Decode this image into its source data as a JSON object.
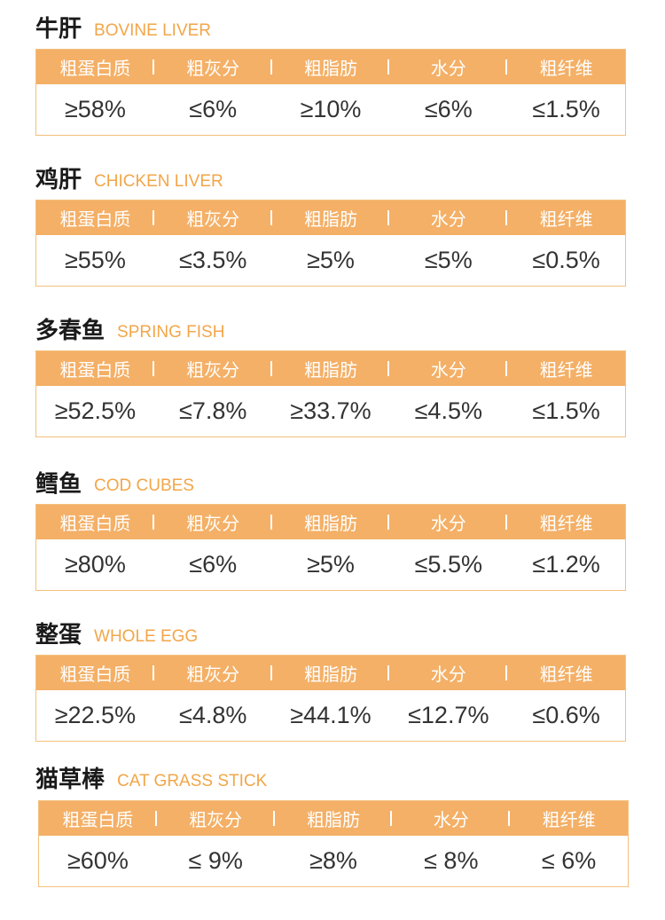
{
  "headers": [
    "粗蛋白质",
    "粗灰分",
    "粗脂肪",
    "水分",
    "粗纤维"
  ],
  "sections": [
    {
      "name_cn": "牛肝",
      "name_en": "BOVINE LIVER",
      "values": [
        "≥58%",
        "≤6%",
        "≥10%",
        "≤6%",
        "≤1.5%"
      ]
    },
    {
      "name_cn": "鸡肝",
      "name_en": "CHICKEN LIVER",
      "values": [
        "≥55%",
        "≤3.5%",
        "≥5%",
        "≤5%",
        "≤0.5%"
      ]
    },
    {
      "name_cn": "多春鱼",
      "name_en": "SPRING FISH",
      "values": [
        "≥52.5%",
        "≤7.8%",
        "≥33.7%",
        "≤4.5%",
        "≤1.5%"
      ]
    },
    {
      "name_cn": "鳕鱼",
      "name_en": "COD CUBES",
      "values": [
        "≥80%",
        "≤6%",
        "≥5%",
        "≤5.5%",
        "≤1.2%"
      ]
    },
    {
      "name_cn": "整蛋",
      "name_en": "WHOLE EGG",
      "values": [
        "≥22.5%",
        "≤4.8%",
        "≥44.1%",
        "≤12.7%",
        "≤0.6%"
      ]
    },
    {
      "name_cn": "猫草棒",
      "name_en": "CAT GRASS STICK",
      "values": [
        "≥60%",
        "≤ 9%",
        "≥8%",
        "≤ 8%",
        "≤ 6%"
      ]
    }
  ]
}
